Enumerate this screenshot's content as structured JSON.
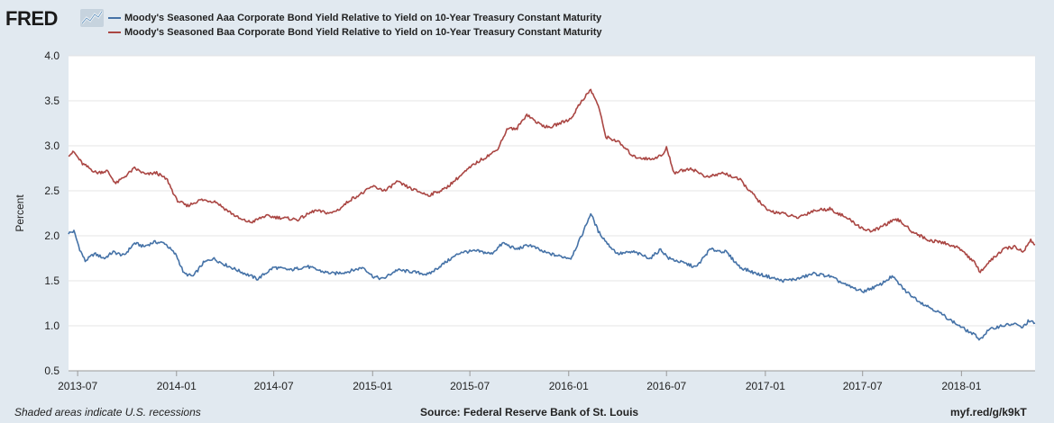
{
  "header": {
    "logo_text": "FRED",
    "legend": [
      {
        "label": "Moody's Seasoned Aaa Corporate Bond Yield Relative to Yield on 10-Year Treasury Constant Maturity",
        "color": "#4572a7"
      },
      {
        "label": "Moody's Seasoned Baa Corporate Bond Yield Relative to Yield on 10-Year Treasury Constant Maturity",
        "color": "#aa4643"
      }
    ]
  },
  "footer": {
    "left": "Shaded areas indicate U.S. recessions",
    "center": "Source: Federal Reserve Bank of St. Louis",
    "right": "myf.red/g/k9kT"
  },
  "chart_data": {
    "type": "line",
    "title": "",
    "xlabel": "",
    "ylabel": "Percent",
    "ylim": [
      0.5,
      4.0
    ],
    "yticks": [
      "0.5",
      "1.0",
      "1.5",
      "2.0",
      "2.5",
      "3.0",
      "3.5",
      "4.0"
    ],
    "xlim": [
      "2013-06-14",
      "2018-05-18"
    ],
    "xticks": [
      {
        "label": "2013-07",
        "date": "2013-07-01"
      },
      {
        "label": "2014-01",
        "date": "2014-01-01"
      },
      {
        "label": "2014-07",
        "date": "2014-07-01"
      },
      {
        "label": "2015-01",
        "date": "2015-01-01"
      },
      {
        "label": "2015-07",
        "date": "2015-07-01"
      },
      {
        "label": "2016-01",
        "date": "2016-01-01"
      },
      {
        "label": "2016-07",
        "date": "2016-07-01"
      },
      {
        "label": "2017-01",
        "date": "2017-01-01"
      },
      {
        "label": "2017-07",
        "date": "2017-07-01"
      },
      {
        "label": "2018-01",
        "date": "2018-01-01"
      }
    ],
    "grid": true,
    "legend_position": "top",
    "series": [
      {
        "name": "Moody's Seasoned Aaa Corporate Bond Yield Relative to Yield on 10-Year Treasury Constant Maturity",
        "color": "#4572a7",
        "points": [
          [
            "2013-06-14",
            2.03
          ],
          [
            "2013-06-24",
            2.05
          ],
          [
            "2013-07-05",
            1.85
          ],
          [
            "2013-07-15",
            1.72
          ],
          [
            "2013-08-01",
            1.8
          ],
          [
            "2013-08-20",
            1.75
          ],
          [
            "2013-09-05",
            1.82
          ],
          [
            "2013-09-25",
            1.78
          ],
          [
            "2013-10-15",
            1.92
          ],
          [
            "2013-11-01",
            1.88
          ],
          [
            "2013-11-20",
            1.93
          ],
          [
            "2013-12-10",
            1.92
          ],
          [
            "2014-01-01",
            1.78
          ],
          [
            "2014-01-15",
            1.58
          ],
          [
            "2014-02-01",
            1.55
          ],
          [
            "2014-02-20",
            1.7
          ],
          [
            "2014-03-10",
            1.75
          ],
          [
            "2014-04-01",
            1.68
          ],
          [
            "2014-05-01",
            1.6
          ],
          [
            "2014-06-01",
            1.52
          ],
          [
            "2014-07-01",
            1.65
          ],
          [
            "2014-08-01",
            1.62
          ],
          [
            "2014-09-01",
            1.66
          ],
          [
            "2014-10-01",
            1.6
          ],
          [
            "2014-10-20",
            1.58
          ],
          [
            "2014-11-15",
            1.6
          ],
          [
            "2014-12-15",
            1.65
          ],
          [
            "2015-01-01",
            1.55
          ],
          [
            "2015-01-20",
            1.52
          ],
          [
            "2015-02-15",
            1.62
          ],
          [
            "2015-03-15",
            1.6
          ],
          [
            "2015-04-15",
            1.57
          ],
          [
            "2015-05-20",
            1.72
          ],
          [
            "2015-06-15",
            1.82
          ],
          [
            "2015-07-15",
            1.83
          ],
          [
            "2015-08-10",
            1.8
          ],
          [
            "2015-09-01",
            1.92
          ],
          [
            "2015-09-25",
            1.85
          ],
          [
            "2015-10-20",
            1.9
          ],
          [
            "2015-11-15",
            1.82
          ],
          [
            "2015-12-10",
            1.78
          ],
          [
            "2016-01-05",
            1.75
          ],
          [
            "2016-01-25",
            2.0
          ],
          [
            "2016-02-11",
            2.25
          ],
          [
            "2016-02-25",
            2.05
          ],
          [
            "2016-03-15",
            1.9
          ],
          [
            "2016-04-01",
            1.8
          ],
          [
            "2016-05-01",
            1.82
          ],
          [
            "2016-06-01",
            1.75
          ],
          [
            "2016-06-20",
            1.85
          ],
          [
            "2016-07-05",
            1.75
          ],
          [
            "2016-08-01",
            1.7
          ],
          [
            "2016-08-25",
            1.65
          ],
          [
            "2016-09-20",
            1.85
          ],
          [
            "2016-10-20",
            1.82
          ],
          [
            "2016-11-15",
            1.65
          ],
          [
            "2016-12-15",
            1.58
          ],
          [
            "2017-01-05",
            1.55
          ],
          [
            "2017-02-01",
            1.5
          ],
          [
            "2017-03-01",
            1.52
          ],
          [
            "2017-04-01",
            1.58
          ],
          [
            "2017-05-01",
            1.55
          ],
          [
            "2017-06-01",
            1.45
          ],
          [
            "2017-07-01",
            1.38
          ],
          [
            "2017-08-01",
            1.45
          ],
          [
            "2017-08-25",
            1.55
          ],
          [
            "2017-09-20",
            1.38
          ],
          [
            "2017-10-20",
            1.25
          ],
          [
            "2017-11-20",
            1.15
          ],
          [
            "2017-12-20",
            1.03
          ],
          [
            "2018-01-10",
            0.95
          ],
          [
            "2018-01-25",
            0.9
          ],
          [
            "2018-02-05",
            0.85
          ],
          [
            "2018-02-20",
            0.95
          ],
          [
            "2018-03-15",
            1.0
          ],
          [
            "2018-04-10",
            1.02
          ],
          [
            "2018-04-25",
            0.98
          ],
          [
            "2018-05-05",
            1.05
          ],
          [
            "2018-05-18",
            1.03
          ]
        ]
      },
      {
        "name": "Moody's Seasoned Baa Corporate Bond Yield Relative to Yield on 10-Year Treasury Constant Maturity",
        "color": "#aa4643",
        "points": [
          [
            "2013-06-14",
            2.9
          ],
          [
            "2013-06-24",
            2.93
          ],
          [
            "2013-07-10",
            2.8
          ],
          [
            "2013-08-05",
            2.7
          ],
          [
            "2013-08-25",
            2.72
          ],
          [
            "2013-09-10",
            2.58
          ],
          [
            "2013-09-25",
            2.65
          ],
          [
            "2013-10-15",
            2.75
          ],
          [
            "2013-11-05",
            2.68
          ],
          [
            "2013-11-25",
            2.7
          ],
          [
            "2013-12-15",
            2.62
          ],
          [
            "2014-01-01",
            2.4
          ],
          [
            "2014-01-20",
            2.33
          ],
          [
            "2014-02-15",
            2.4
          ],
          [
            "2014-03-15",
            2.38
          ],
          [
            "2014-04-01",
            2.3
          ],
          [
            "2014-05-01",
            2.18
          ],
          [
            "2014-05-20",
            2.15
          ],
          [
            "2014-06-15",
            2.22
          ],
          [
            "2014-07-15",
            2.2
          ],
          [
            "2014-08-15",
            2.18
          ],
          [
            "2014-09-15",
            2.28
          ],
          [
            "2014-10-15",
            2.25
          ],
          [
            "2014-11-01",
            2.3
          ],
          [
            "2014-11-20",
            2.4
          ],
          [
            "2014-12-15",
            2.48
          ],
          [
            "2015-01-01",
            2.55
          ],
          [
            "2015-01-25",
            2.5
          ],
          [
            "2015-02-15",
            2.6
          ],
          [
            "2015-03-15",
            2.52
          ],
          [
            "2015-04-15",
            2.45
          ],
          [
            "2015-05-15",
            2.52
          ],
          [
            "2015-06-10",
            2.65
          ],
          [
            "2015-07-10",
            2.8
          ],
          [
            "2015-08-01",
            2.88
          ],
          [
            "2015-08-20",
            2.95
          ],
          [
            "2015-09-10",
            3.2
          ],
          [
            "2015-09-25",
            3.18
          ],
          [
            "2015-10-15",
            3.35
          ],
          [
            "2015-11-05",
            3.25
          ],
          [
            "2015-11-25",
            3.2
          ],
          [
            "2015-12-15",
            3.25
          ],
          [
            "2016-01-05",
            3.3
          ],
          [
            "2016-01-25",
            3.5
          ],
          [
            "2016-02-11",
            3.62
          ],
          [
            "2016-02-25",
            3.45
          ],
          [
            "2016-03-10",
            3.1
          ],
          [
            "2016-04-01",
            3.05
          ],
          [
            "2016-05-01",
            2.88
          ],
          [
            "2016-06-01",
            2.85
          ],
          [
            "2016-06-25",
            2.9
          ],
          [
            "2016-07-01",
            2.98
          ],
          [
            "2016-07-15",
            2.7
          ],
          [
            "2016-08-15",
            2.75
          ],
          [
            "2016-09-15",
            2.65
          ],
          [
            "2016-10-15",
            2.7
          ],
          [
            "2016-11-15",
            2.62
          ],
          [
            "2016-12-15",
            2.42
          ],
          [
            "2017-01-05",
            2.28
          ],
          [
            "2017-02-01",
            2.25
          ],
          [
            "2017-03-01",
            2.2
          ],
          [
            "2017-04-01",
            2.28
          ],
          [
            "2017-05-01",
            2.3
          ],
          [
            "2017-06-01",
            2.2
          ],
          [
            "2017-07-01",
            2.08
          ],
          [
            "2017-07-20",
            2.05
          ],
          [
            "2017-08-20",
            2.15
          ],
          [
            "2017-09-05",
            2.18
          ],
          [
            "2017-10-01",
            2.05
          ],
          [
            "2017-11-01",
            1.95
          ],
          [
            "2017-12-01",
            1.92
          ],
          [
            "2018-01-01",
            1.85
          ],
          [
            "2018-01-25",
            1.7
          ],
          [
            "2018-02-05",
            1.6
          ],
          [
            "2018-02-20",
            1.7
          ],
          [
            "2018-03-20",
            1.85
          ],
          [
            "2018-04-10",
            1.88
          ],
          [
            "2018-04-25",
            1.82
          ],
          [
            "2018-05-10",
            1.95
          ],
          [
            "2018-05-18",
            1.9
          ]
        ]
      }
    ]
  }
}
